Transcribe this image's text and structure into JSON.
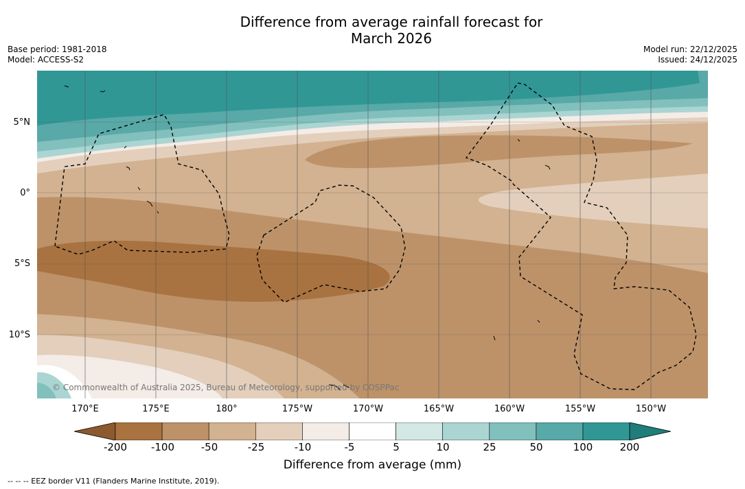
{
  "title": {
    "line1": "Difference from average rainfall forecast for",
    "line2": "March 2026"
  },
  "meta": {
    "base_period": "Base period: 1981-2018",
    "model": "Model: ACCESS-S2",
    "model_run": "Model run: 22/12/2025",
    "issued": "Issued: 24/12/2025"
  },
  "map": {
    "lat_labels": [
      "5°N",
      "0°",
      "5°S",
      "10°S"
    ],
    "lon_labels": [
      "170°E",
      "175°E",
      "180°",
      "175°W",
      "170°W",
      "165°W",
      "160°W",
      "155°W",
      "150°W"
    ],
    "copyright": "© Commonwealth of Australia 2025, Bureau of Meteorology, supported by COSPPac"
  },
  "colorbar": {
    "ticks": [
      "-200",
      "-100",
      "-50",
      "-25",
      "-10",
      "-5",
      "5",
      "10",
      "25",
      "50",
      "100",
      "200"
    ],
    "colors": [
      "#a87340",
      "#bd9269",
      "#d2b290",
      "#e3cfbc",
      "#f3ece7",
      "#ffffff",
      "#d3e7e4",
      "#aad5d2",
      "#82c0bd",
      "#58a9a7",
      "#309795",
      "#1f7d7b"
    ],
    "low_extend_color": "#8c5a2e",
    "high_extend_color": "#1f7d7b",
    "label": "Difference from average (mm)"
  },
  "footnote": "--  --  -- EEZ border V11 (Flanders Marine Institute, 2019)."
}
